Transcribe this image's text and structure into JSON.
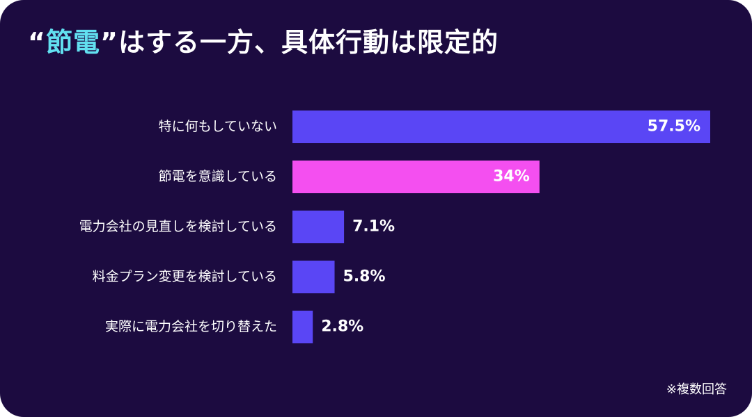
{
  "title": {
    "quote_open": "“",
    "accent": "節電",
    "quote_close": "”",
    "rest": "はする一方、具体行動は限定的"
  },
  "footnote": "※複数回答",
  "colors": {
    "background": "#1c0b40",
    "accent_text": "#62e0f0",
    "bar_default": "#5a46f5",
    "bar_highlight": "#f44ff0"
  },
  "chart_data": {
    "type": "bar",
    "orientation": "horizontal",
    "categories": [
      "特に何もしていない",
      "節電を意識している",
      "電力会社の見直しを検討している",
      "料金プラン変更を検討している",
      "実際に電力会社を切り替えた"
    ],
    "values": [
      57.5,
      34,
      7.1,
      5.8,
      2.8
    ],
    "value_labels": [
      "57.5%",
      "34%",
      "7.1%",
      "5.8%",
      "2.8%"
    ],
    "highlight_index": 1,
    "xlim": [
      0,
      57.5
    ],
    "grid": false,
    "legend": "none"
  }
}
